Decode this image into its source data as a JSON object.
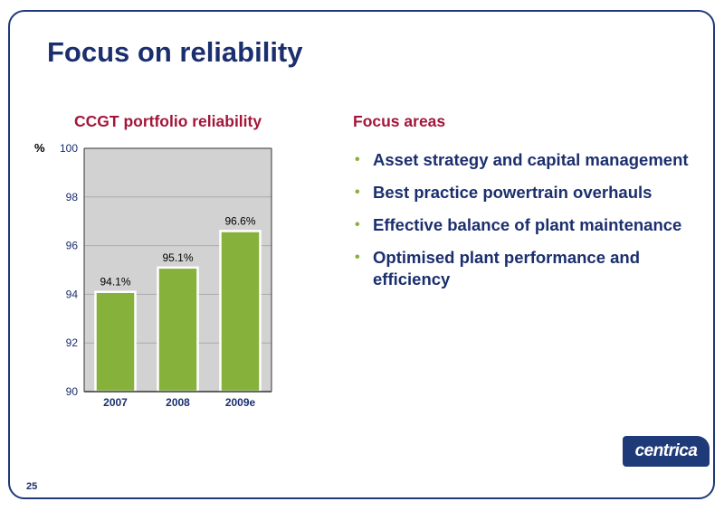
{
  "slide": {
    "title": "Focus on reliability",
    "page_number": "25",
    "logo_text": "centrica"
  },
  "chart": {
    "title": "CCGT portfolio reliability"
  },
  "focus": {
    "heading": "Focus areas",
    "items": [
      "Asset strategy and capital management",
      "Best practice powertrain overhauls",
      "Effective balance of plant maintenance",
      "Optimised plant performance and efficiency"
    ]
  },
  "colors": {
    "title": "#1b2f6e",
    "heading": "#a3163a",
    "bar": "#86b13a",
    "plot_background": "#d2d2d2",
    "bullet": "#86b13a"
  },
  "chart_data": {
    "type": "bar",
    "title": "CCGT portfolio reliability",
    "ylabel": "%",
    "xlabel": "",
    "categories": [
      "2007",
      "2008",
      "2009e"
    ],
    "values": [
      94.1,
      95.1,
      96.6
    ],
    "data_labels": [
      "94.1%",
      "95.1%",
      "96.6%"
    ],
    "ylim": [
      90,
      100
    ],
    "yticks": [
      90,
      92,
      94,
      96,
      98,
      100
    ],
    "grid": true,
    "legend": "none"
  }
}
